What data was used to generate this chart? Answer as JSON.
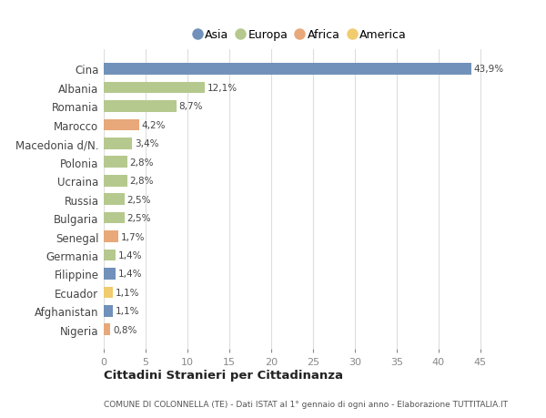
{
  "countries": [
    "Cina",
    "Albania",
    "Romania",
    "Marocco",
    "Macedonia d/N.",
    "Polonia",
    "Ucraina",
    "Russia",
    "Bulgaria",
    "Senegal",
    "Germania",
    "Filippine",
    "Ecuador",
    "Afghanistan",
    "Nigeria"
  ],
  "values": [
    43.9,
    12.1,
    8.7,
    4.2,
    3.4,
    2.8,
    2.8,
    2.5,
    2.5,
    1.7,
    1.4,
    1.4,
    1.1,
    1.1,
    0.8
  ],
  "labels": [
    "43,9%",
    "12,1%",
    "8,7%",
    "4,2%",
    "3,4%",
    "2,8%",
    "2,8%",
    "2,5%",
    "2,5%",
    "1,7%",
    "1,4%",
    "1,4%",
    "1,1%",
    "1,1%",
    "0,8%"
  ],
  "categories": [
    "Asia",
    "Europa",
    "Europa",
    "Africa",
    "Europa",
    "Europa",
    "Europa",
    "Europa",
    "Europa",
    "Africa",
    "Europa",
    "Asia",
    "America",
    "Asia",
    "Africa"
  ],
  "colors": {
    "Asia": "#7191bb",
    "Europa": "#b5c98e",
    "Africa": "#e8a87a",
    "America": "#f0cc6e"
  },
  "legend_order": [
    "Asia",
    "Europa",
    "Africa",
    "America"
  ],
  "title": "Cittadini Stranieri per Cittadinanza",
  "subtitle": "COMUNE DI COLONNELLA (TE) - Dati ISTAT al 1° gennaio di ogni anno - Elaborazione TUTTITALIA.IT",
  "xlim": [
    0,
    47
  ],
  "xticks": [
    0,
    5,
    10,
    15,
    20,
    25,
    30,
    35,
    40,
    45
  ],
  "bg_color": "#ffffff",
  "grid_color": "#dddddd"
}
